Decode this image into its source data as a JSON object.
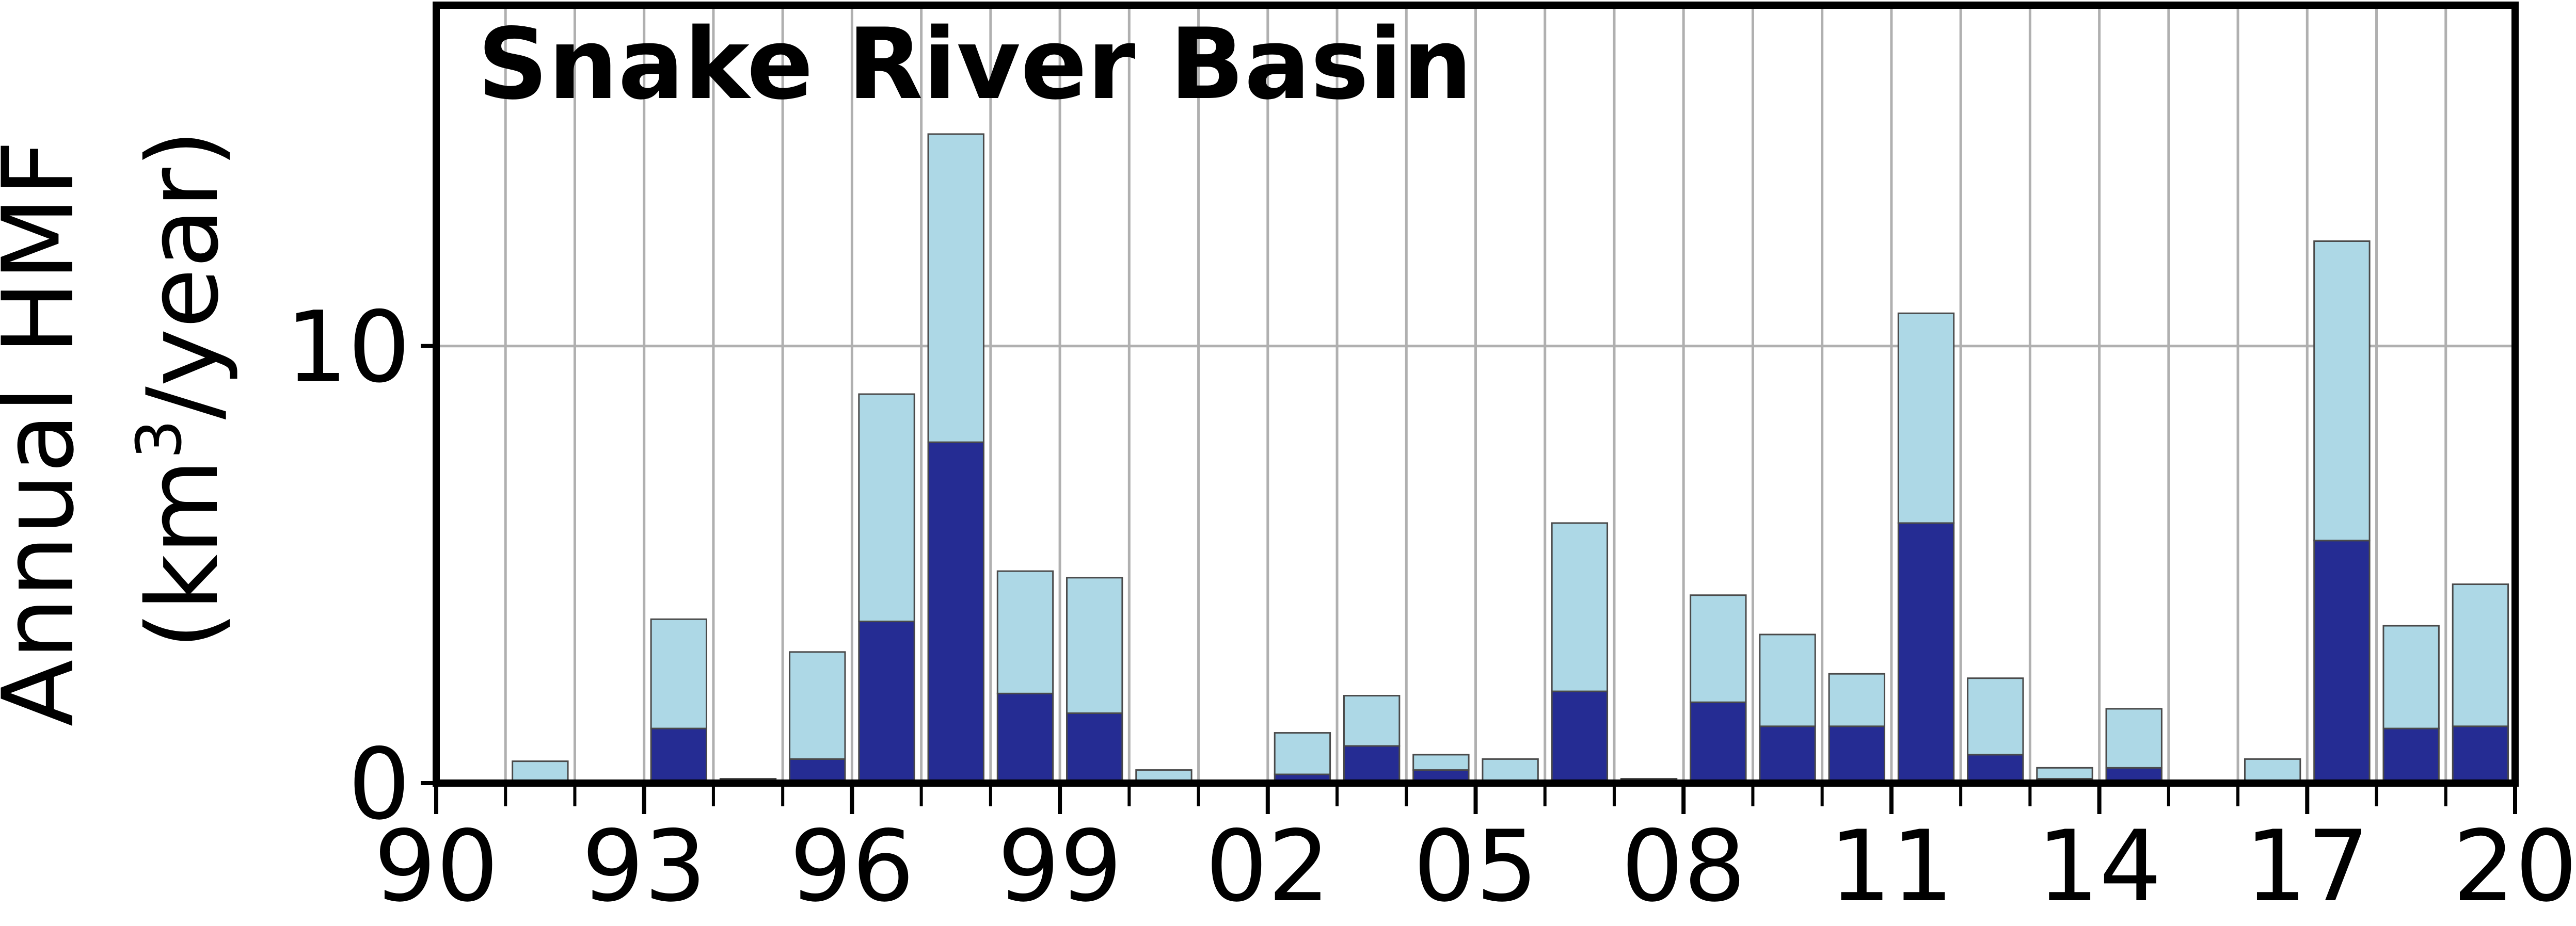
{
  "chart_data": {
    "type": "bar",
    "stacked": true,
    "title": "Snake River Basin",
    "ylabel_line1": "Annual HMF",
    "ylabel_line2_pre": "(km",
    "ylabel_line2_sup": "3",
    "ylabel_line2_post": "/year)",
    "x_tick_labels": [
      "90",
      "93",
      "96",
      "99",
      "02",
      "05",
      "08",
      "11",
      "14",
      "17",
      "20"
    ],
    "y_tick_labels": [
      "0",
      "10"
    ],
    "xlim": [
      1990,
      2020
    ],
    "ylim": [
      0,
      17.8
    ],
    "grid": true,
    "years": [
      1991,
      1992,
      1993,
      1994,
      1995,
      1996,
      1997,
      1998,
      1999,
      2000,
      2001,
      2002,
      2003,
      2004,
      2005,
      2006,
      2007,
      2008,
      2009,
      2010,
      2011,
      2012,
      2013,
      2014,
      2015,
      2016,
      2017,
      2018,
      2019
    ],
    "series": [
      {
        "color": "#252c93",
        "values": [
          0.05,
          0,
          1.25,
          0.05,
          0.55,
          3.7,
          7.8,
          2.05,
          1.6,
          0.05,
          0,
          0.2,
          0.85,
          0.3,
          0.05,
          2.1,
          0.05,
          1.85,
          1.3,
          1.3,
          5.95,
          0.65,
          0.1,
          0.35,
          0,
          0.05,
          5.55,
          1.25,
          1.3
        ]
      },
      {
        "color": "#add8e6",
        "values": [
          0.45,
          0,
          2.5,
          0.05,
          2.45,
          5.2,
          7.05,
          2.8,
          3.1,
          0.25,
          0,
          0.95,
          1.15,
          0.35,
          0.5,
          3.85,
          0.05,
          2.45,
          2.1,
          1.2,
          4.8,
          1.75,
          0.25,
          1.35,
          0,
          0.5,
          6.85,
          2.35,
          3.25
        ]
      }
    ]
  }
}
